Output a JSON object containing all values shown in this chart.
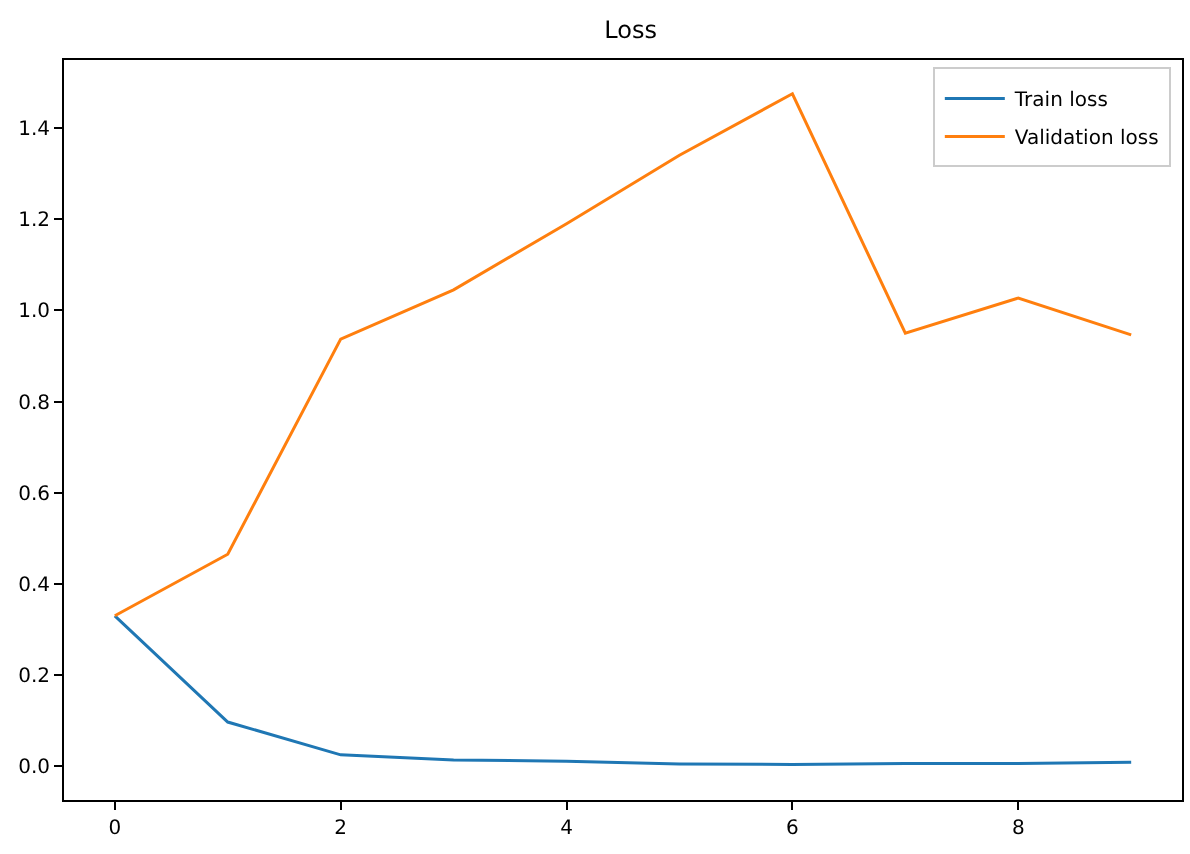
{
  "chart_data": {
    "type": "line",
    "title": "Loss",
    "x": [
      0,
      1,
      2,
      3,
      4,
      5,
      6,
      7,
      8,
      9
    ],
    "series": [
      {
        "name": "Train loss",
        "color": "#1f77b4",
        "values": [
          0.33,
          0.097,
          0.025,
          0.014,
          0.011,
          0.005,
          0.004,
          0.006,
          0.006,
          0.009
        ]
      },
      {
        "name": "Validation loss",
        "color": "#ff7f0e",
        "values": [
          0.33,
          0.465,
          0.937,
          1.045,
          1.19,
          1.34,
          1.475,
          0.95,
          1.027,
          0.946
        ]
      }
    ],
    "xlim": [
      -0.45,
      9.45
    ],
    "xticks": [
      0,
      2,
      4,
      6,
      8
    ],
    "ylim": [
      -0.074,
      1.549
    ],
    "yticks": [
      {
        "value": 0,
        "label": "0.0"
      },
      {
        "value": 0.2,
        "label": "0.2"
      },
      {
        "value": 0.4,
        "label": "0.4"
      },
      {
        "value": 0.6,
        "label": "0.6"
      },
      {
        "value": 0.8,
        "label": "0.8"
      },
      {
        "value": 1.0,
        "label": "1.0"
      },
      {
        "value": 1.2,
        "label": "1.2"
      },
      {
        "value": 1.4,
        "label": "1.4"
      }
    ],
    "legend": "top right",
    "grid": false,
    "marker": "none",
    "line_style": "solid"
  }
}
